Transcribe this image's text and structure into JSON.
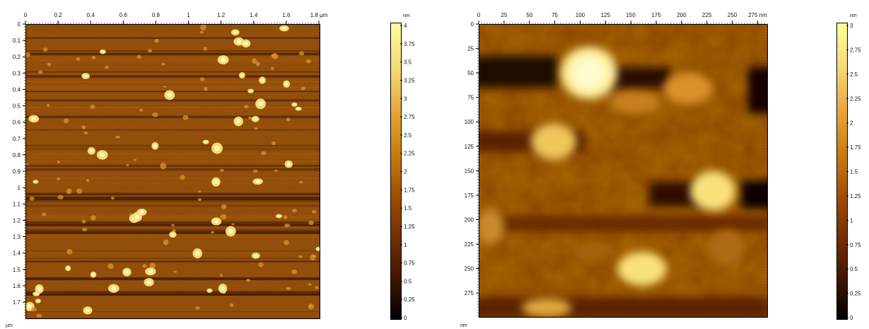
{
  "panel_left": {
    "x_ticks": [
      "0",
      "0.2",
      "0.4",
      "0.6",
      "0.8",
      "1",
      "1.2",
      "1.4",
      "1.6",
      "1.8 µm"
    ],
    "y_ticks": [
      "0",
      "0.1",
      "0.2",
      "0.3",
      "0.4",
      "0.5",
      "0.6",
      "0.7",
      "0.8",
      "0.9",
      "1",
      "1.1",
      "1.2",
      "1.3",
      "1.4",
      "1.5",
      "1.6",
      "1.7"
    ],
    "y_unit": "µm",
    "colorbar": {
      "unit": "nm",
      "ticks": [
        "4",
        "3.75",
        "3.5",
        "3.25",
        "3",
        "2.75",
        "2.5",
        "2.25",
        "2",
        "1.75",
        "1.5",
        "1.25",
        "1",
        "0.75",
        "0.5",
        "0.25",
        "0"
      ]
    }
  },
  "panel_right": {
    "x_ticks": [
      "0",
      "25",
      "50",
      "75",
      "100",
      "125",
      "150",
      "175",
      "200",
      "225",
      "250",
      "275 nm"
    ],
    "y_ticks": [
      "0",
      "25",
      "50",
      "75",
      "100",
      "125",
      "150",
      "175",
      "200",
      "225",
      "250",
      "275"
    ],
    "y_unit": "nm",
    "colorbar": {
      "unit": "nm",
      "ticks": [
        "3",
        "2.75",
        "2.5",
        "2.25",
        "2",
        "1.75",
        "1.5",
        "1.25",
        "1",
        "0.75",
        "0.5",
        "0.25",
        "0"
      ]
    }
  },
  "colors": {
    "dark": "#4a1f00",
    "mid": "#8a4200",
    "bright": "#ffe680"
  }
}
